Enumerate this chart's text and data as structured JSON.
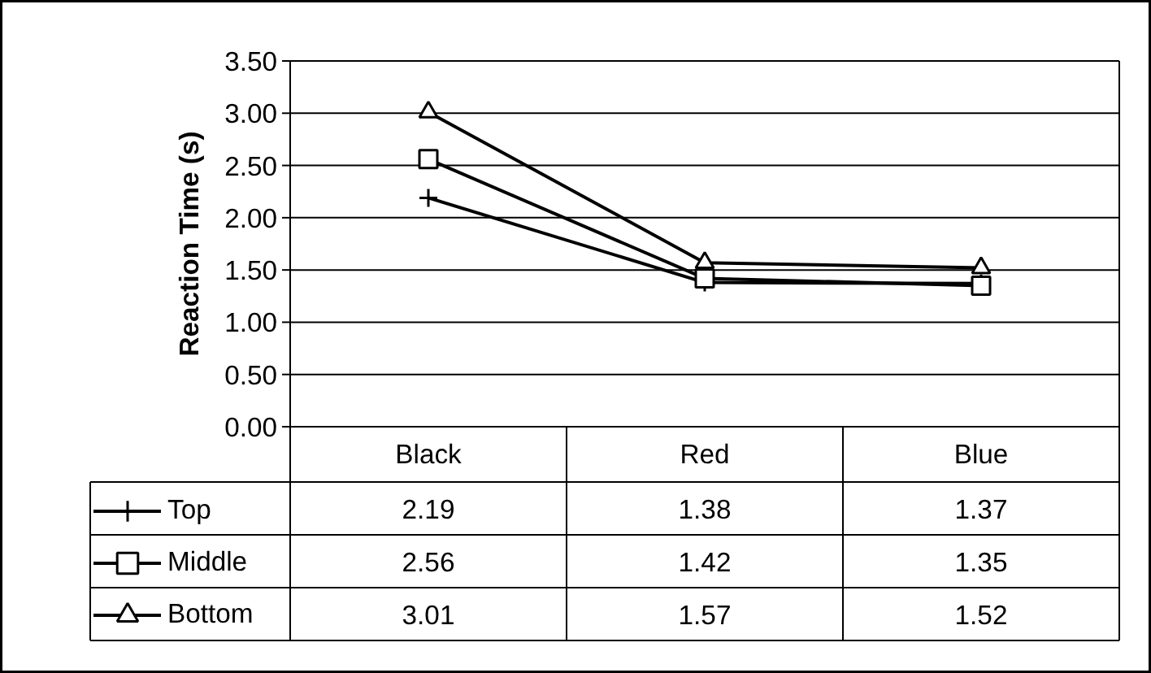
{
  "chart_data": {
    "type": "line",
    "ylabel": "Reaction Time (s)",
    "categories": [
      "Black",
      "Red",
      "Blue"
    ],
    "series": [
      {
        "name": "Top",
        "color": "#000000",
        "marker": "cross",
        "values": [
          2.19,
          1.38,
          1.37
        ]
      },
      {
        "name": "Middle",
        "color": "#000000",
        "marker": "square",
        "values": [
          2.56,
          1.42,
          1.35
        ]
      },
      {
        "name": "Bottom",
        "color": "#000000",
        "marker": "triangle",
        "values": [
          3.01,
          1.57,
          1.52
        ]
      }
    ],
    "ylim": [
      0,
      3.5
    ],
    "yticks": [
      {
        "value": 0,
        "label": "0.00"
      },
      {
        "value": 0.5,
        "label": "0.50"
      },
      {
        "value": 1,
        "label": "1.00"
      },
      {
        "value": 1.5,
        "label": "1.50"
      },
      {
        "value": 2,
        "label": "2.00"
      },
      {
        "value": 2.5,
        "label": "2.50"
      },
      {
        "value": 3,
        "label": "3.00"
      },
      {
        "value": 3.5,
        "label": "3.50"
      }
    ],
    "grid": "y",
    "tick_labels": "y",
    "legend": "bottom",
    "data_labels": true,
    "line_style": "solid"
  }
}
